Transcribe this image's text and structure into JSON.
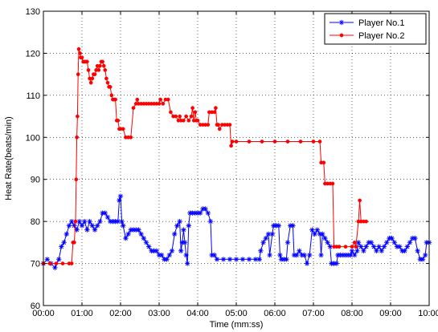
{
  "chart_data": {
    "type": "line",
    "xlabel": "Time (mm:ss)",
    "ylabel": "Heat Rate(beats/min)",
    "xlim": [
      0,
      600
    ],
    "ylim": [
      60,
      130
    ],
    "x_ticks": [
      0,
      60,
      120,
      180,
      240,
      300,
      360,
      420,
      480,
      540,
      600
    ],
    "x_tick_labels": [
      "00:00",
      "01:00",
      "02:00",
      "03:00",
      "04:00",
      "05:00",
      "06:00",
      "07:00",
      "08:00",
      "09:00",
      "10:00"
    ],
    "y_ticks": [
      60,
      70,
      80,
      90,
      100,
      110,
      120,
      130
    ],
    "y_tick_labels": [
      "60",
      "70",
      "80",
      "90",
      "100",
      "110",
      "120",
      "130"
    ],
    "grid": true,
    "legend_position": "top-right",
    "series": [
      {
        "name": "Player No.1",
        "color": "#0000ff",
        "marker": "star",
        "points": [
          [
            0,
            70
          ],
          [
            6,
            71
          ],
          [
            12,
            70
          ],
          [
            18,
            69
          ],
          [
            24,
            71
          ],
          [
            28,
            74
          ],
          [
            32,
            75
          ],
          [
            36,
            77
          ],
          [
            40,
            79
          ],
          [
            44,
            80
          ],
          [
            48,
            79
          ],
          [
            52,
            78
          ],
          [
            56,
            80
          ],
          [
            60,
            79
          ],
          [
            64,
            80
          ],
          [
            68,
            78
          ],
          [
            72,
            80
          ],
          [
            76,
            79
          ],
          [
            80,
            78
          ],
          [
            84,
            79
          ],
          [
            88,
            80
          ],
          [
            92,
            82
          ],
          [
            96,
            82
          ],
          [
            100,
            81
          ],
          [
            104,
            80
          ],
          [
            108,
            80
          ],
          [
            112,
            80
          ],
          [
            116,
            80
          ],
          [
            118,
            85
          ],
          [
            120,
            86
          ],
          [
            122,
            80
          ],
          [
            124,
            79
          ],
          [
            128,
            76
          ],
          [
            132,
            77
          ],
          [
            136,
            78
          ],
          [
            140,
            78
          ],
          [
            144,
            78
          ],
          [
            148,
            78
          ],
          [
            152,
            77
          ],
          [
            156,
            76
          ],
          [
            160,
            75
          ],
          [
            164,
            74
          ],
          [
            168,
            73
          ],
          [
            172,
            73
          ],
          [
            176,
            73
          ],
          [
            180,
            72
          ],
          [
            184,
            72
          ],
          [
            188,
            71
          ],
          [
            192,
            71
          ],
          [
            196,
            72
          ],
          [
            200,
            73
          ],
          [
            204,
            77
          ],
          [
            208,
            79
          ],
          [
            212,
            80
          ],
          [
            214,
            73
          ],
          [
            216,
            75
          ],
          [
            218,
            78
          ],
          [
            220,
            75
          ],
          [
            222,
            72
          ],
          [
            224,
            70
          ],
          [
            226,
            79
          ],
          [
            228,
            82
          ],
          [
            232,
            82
          ],
          [
            236,
            82
          ],
          [
            240,
            82
          ],
          [
            244,
            82
          ],
          [
            248,
            83
          ],
          [
            252,
            83
          ],
          [
            256,
            82
          ],
          [
            260,
            80
          ],
          [
            262,
            72
          ],
          [
            266,
            72
          ],
          [
            270,
            71
          ],
          [
            280,
            71
          ],
          [
            290,
            71
          ],
          [
            300,
            71
          ],
          [
            310,
            71
          ],
          [
            320,
            71
          ],
          [
            330,
            71
          ],
          [
            336,
            71
          ],
          [
            338,
            73
          ],
          [
            342,
            75
          ],
          [
            346,
            76
          ],
          [
            350,
            77
          ],
          [
            352,
            72
          ],
          [
            356,
            77
          ],
          [
            358,
            79
          ],
          [
            362,
            79
          ],
          [
            366,
            79
          ],
          [
            368,
            72
          ],
          [
            370,
            71
          ],
          [
            374,
            71
          ],
          [
            378,
            71
          ],
          [
            380,
            75
          ],
          [
            384,
            79
          ],
          [
            388,
            79
          ],
          [
            390,
            72
          ],
          [
            394,
            72
          ],
          [
            398,
            73
          ],
          [
            402,
            72
          ],
          [
            406,
            72
          ],
          [
            410,
            70
          ],
          [
            414,
            72
          ],
          [
            418,
            78
          ],
          [
            422,
            77
          ],
          [
            426,
            78
          ],
          [
            430,
            77
          ],
          [
            432,
            72
          ],
          [
            434,
            77
          ],
          [
            438,
            76
          ],
          [
            442,
            75
          ],
          [
            446,
            74
          ],
          [
            448,
            70
          ],
          [
            452,
            70
          ],
          [
            456,
            70
          ],
          [
            458,
            72
          ],
          [
            462,
            72
          ],
          [
            466,
            72
          ],
          [
            470,
            72
          ],
          [
            474,
            72
          ],
          [
            478,
            72
          ],
          [
            480,
            73
          ],
          [
            484,
            72
          ],
          [
            488,
            73
          ],
          [
            490,
            75
          ],
          [
            494,
            74
          ],
          [
            498,
            73
          ],
          [
            502,
            74
          ],
          [
            506,
            75
          ],
          [
            510,
            75
          ],
          [
            514,
            74
          ],
          [
            518,
            73
          ],
          [
            522,
            74
          ],
          [
            526,
            73
          ],
          [
            530,
            74
          ],
          [
            534,
            75
          ],
          [
            538,
            76
          ],
          [
            542,
            76
          ],
          [
            546,
            75
          ],
          [
            550,
            74
          ],
          [
            554,
            74
          ],
          [
            558,
            73
          ],
          [
            562,
            73
          ],
          [
            566,
            74
          ],
          [
            570,
            75
          ],
          [
            574,
            76
          ],
          [
            578,
            76
          ],
          [
            582,
            73
          ],
          [
            586,
            71
          ],
          [
            590,
            71
          ],
          [
            594,
            72
          ],
          [
            596,
            75
          ],
          [
            600,
            75
          ]
        ]
      },
      {
        "name": "Player No.2",
        "color": "#ff0000",
        "marker": "dot",
        "points": [
          [
            0,
            70
          ],
          [
            10,
            70
          ],
          [
            20,
            70
          ],
          [
            30,
            70
          ],
          [
            40,
            70
          ],
          [
            44,
            70
          ],
          [
            46,
            75
          ],
          [
            48,
            75
          ],
          [
            50,
            80
          ],
          [
            51,
            90
          ],
          [
            52,
            100
          ],
          [
            53,
            105
          ],
          [
            54,
            115
          ],
          [
            55,
            121
          ],
          [
            57,
            120
          ],
          [
            58,
            119
          ],
          [
            60,
            119
          ],
          [
            62,
            118
          ],
          [
            64,
            118
          ],
          [
            66,
            118
          ],
          [
            68,
            118
          ],
          [
            70,
            116
          ],
          [
            72,
            114
          ],
          [
            74,
            113
          ],
          [
            76,
            114
          ],
          [
            78,
            115
          ],
          [
            80,
            115
          ],
          [
            82,
            116
          ],
          [
            84,
            117
          ],
          [
            86,
            116
          ],
          [
            88,
            117
          ],
          [
            90,
            118
          ],
          [
            92,
            118
          ],
          [
            94,
            117
          ],
          [
            96,
            116
          ],
          [
            98,
            114
          ],
          [
            100,
            113
          ],
          [
            102,
            112
          ],
          [
            104,
            112
          ],
          [
            106,
            110
          ],
          [
            108,
            109
          ],
          [
            110,
            109
          ],
          [
            112,
            109
          ],
          [
            114,
            104
          ],
          [
            116,
            104
          ],
          [
            118,
            102
          ],
          [
            120,
            102
          ],
          [
            124,
            102
          ],
          [
            128,
            100
          ],
          [
            132,
            100
          ],
          [
            136,
            100
          ],
          [
            140,
            107
          ],
          [
            144,
            108
          ],
          [
            146,
            109
          ],
          [
            148,
            108
          ],
          [
            152,
            108
          ],
          [
            156,
            108
          ],
          [
            160,
            108
          ],
          [
            164,
            108
          ],
          [
            168,
            108
          ],
          [
            172,
            108
          ],
          [
            176,
            108
          ],
          [
            180,
            108
          ],
          [
            182,
            109
          ],
          [
            186,
            108
          ],
          [
            190,
            109
          ],
          [
            194,
            109
          ],
          [
            198,
            106
          ],
          [
            202,
            105
          ],
          [
            206,
            105
          ],
          [
            210,
            104
          ],
          [
            212,
            105
          ],
          [
            214,
            104
          ],
          [
            218,
            104
          ],
          [
            222,
            105
          ],
          [
            226,
            104
          ],
          [
            230,
            105
          ],
          [
            232,
            107
          ],
          [
            234,
            104
          ],
          [
            236,
            106
          ],
          [
            238,
            104
          ],
          [
            240,
            104
          ],
          [
            244,
            103
          ],
          [
            248,
            103
          ],
          [
            252,
            103
          ],
          [
            256,
            103
          ],
          [
            258,
            106
          ],
          [
            262,
            106
          ],
          [
            266,
            106
          ],
          [
            268,
            107
          ],
          [
            270,
            103
          ],
          [
            272,
            103
          ],
          [
            274,
            102
          ],
          [
            278,
            103
          ],
          [
            282,
            103
          ],
          [
            286,
            103
          ],
          [
            290,
            103
          ],
          [
            292,
            98
          ],
          [
            294,
            99
          ],
          [
            300,
            99
          ],
          [
            320,
            99
          ],
          [
            340,
            99
          ],
          [
            360,
            99
          ],
          [
            380,
            99
          ],
          [
            400,
            99
          ],
          [
            420,
            99
          ],
          [
            430,
            99
          ],
          [
            432,
            94
          ],
          [
            436,
            94
          ],
          [
            438,
            89
          ],
          [
            442,
            89
          ],
          [
            446,
            89
          ],
          [
            450,
            89
          ],
          [
            452,
            74
          ],
          [
            456,
            74
          ],
          [
            460,
            74
          ],
          [
            470,
            74
          ],
          [
            480,
            74
          ],
          [
            484,
            75
          ],
          [
            486,
            74
          ],
          [
            490,
            80
          ],
          [
            492,
            85
          ],
          [
            494,
            80
          ],
          [
            498,
            80
          ],
          [
            502,
            80
          ]
        ]
      }
    ]
  }
}
